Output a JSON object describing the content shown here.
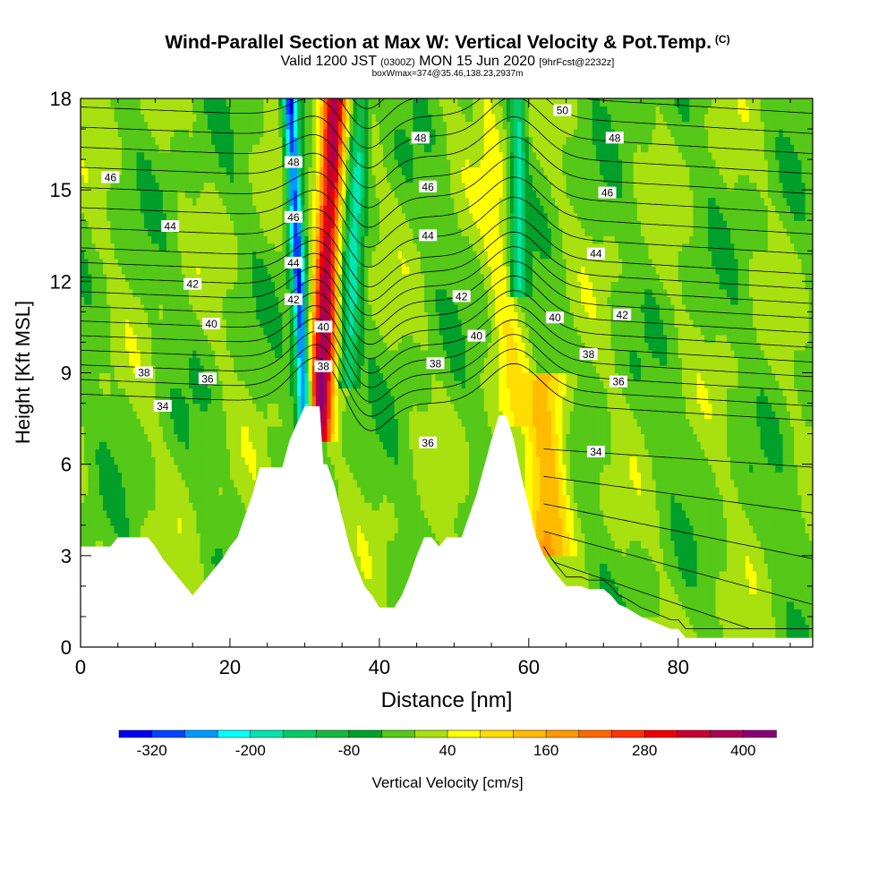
{
  "header": {
    "title": "Wind-Parallel Section at Max W: Vertical Velocity & Pot.Temp.",
    "copyright": "(C)",
    "valid_prefix": "Valid 1200 JST",
    "utc": "(0300Z)",
    "date": "MON 15 Jun 2020",
    "forecast": "[9hrFcst@2232z]",
    "box": "boxWmax=374@35.46,138.23,2937m"
  },
  "chart_data": {
    "type": "heatmap",
    "xlabel": "Distance [nm]",
    "ylabel": "Height [Kft MSL]",
    "xlim": [
      0,
      98
    ],
    "ylim": [
      0,
      18
    ],
    "x_ticks": [
      "0",
      "20",
      "40",
      "60",
      "80"
    ],
    "y_ticks": [
      "0",
      "3",
      "6",
      "9",
      "12",
      "15",
      "18"
    ],
    "colorbar": {
      "label": "Vertical Velocity [cm/s]",
      "tick_labels": [
        "-320",
        "-200",
        "-80",
        "40",
        "160",
        "280",
        "400"
      ],
      "tick_values": [
        -320,
        -200,
        -80,
        40,
        160,
        280,
        400
      ],
      "min": -360,
      "max": 440,
      "step": 40,
      "colors": [
        "#0000ee",
        "#0044ff",
        "#0099ff",
        "#00ffff",
        "#00e6b0",
        "#00cc66",
        "#14b83c",
        "#00a02a",
        "#55c818",
        "#a8e010",
        "#ffff00",
        "#ffdd00",
        "#ffbb00",
        "#ff9900",
        "#ff6600",
        "#ff3300",
        "#ee0000",
        "#c80030",
        "#aa0055",
        "#880077"
      ]
    },
    "terrain_kft": [
      [
        0,
        3.3
      ],
      [
        4,
        3.3
      ],
      [
        5,
        3.6
      ],
      [
        9,
        3.6
      ],
      [
        10,
        3.3
      ],
      [
        11,
        2.9
      ],
      [
        12,
        2.6
      ],
      [
        13,
        2.3
      ],
      [
        14,
        2.0
      ],
      [
        15,
        1.7
      ],
      [
        16,
        2.0
      ],
      [
        17,
        2.3
      ],
      [
        18,
        2.6
      ],
      [
        19,
        2.9
      ],
      [
        20,
        3.3
      ],
      [
        21,
        3.6
      ],
      [
        22,
        4.3
      ],
      [
        23,
        5.0
      ],
      [
        24,
        5.9
      ],
      [
        27,
        5.9
      ],
      [
        28,
        6.8
      ],
      [
        30,
        7.9
      ],
      [
        32,
        7.9
      ],
      [
        32.5,
        6.0
      ],
      [
        33,
        6.0
      ],
      [
        34,
        5.3
      ],
      [
        35,
        4.3
      ],
      [
        36,
        3.3
      ],
      [
        37,
        2.6
      ],
      [
        38,
        2.0
      ],
      [
        39,
        1.7
      ],
      [
        40,
        1.3
      ],
      [
        41,
        1.3
      ],
      [
        42,
        1.3
      ],
      [
        43,
        1.7
      ],
      [
        44,
        2.3
      ],
      [
        45,
        3.0
      ],
      [
        46,
        3.6
      ],
      [
        47,
        3.6
      ],
      [
        48,
        3.3
      ],
      [
        49,
        3.6
      ],
      [
        50,
        3.6
      ],
      [
        51,
        3.6
      ],
      [
        52,
        4.3
      ],
      [
        53,
        5.0
      ],
      [
        54,
        5.9
      ],
      [
        55,
        6.8
      ],
      [
        56,
        7.6
      ],
      [
        57,
        7.6
      ],
      [
        58,
        6.8
      ],
      [
        59,
        5.6
      ],
      [
        60,
        4.6
      ],
      [
        61,
        3.6
      ],
      [
        62,
        3.0
      ],
      [
        63,
        2.6
      ],
      [
        64,
        2.3
      ],
      [
        65,
        2.0
      ],
      [
        66,
        2.0
      ],
      [
        67,
        2.0
      ],
      [
        68,
        1.9
      ],
      [
        70,
        1.9
      ],
      [
        71,
        1.7
      ],
      [
        72,
        1.4
      ],
      [
        73,
        1.3
      ],
      [
        75,
        1.0
      ],
      [
        79,
        0.6
      ],
      [
        80,
        0.6
      ],
      [
        81,
        0.3
      ],
      [
        90,
        0.3
      ],
      [
        98,
        0.3
      ]
    ],
    "theta_contours": [
      {
        "label": "34",
        "x": 11,
        "y": 7.9
      },
      {
        "label": "38",
        "x": 8.5,
        "y": 9.0
      },
      {
        "label": "36",
        "x": 17,
        "y": 8.8
      },
      {
        "label": "40",
        "x": 17.5,
        "y": 10.6
      },
      {
        "label": "42",
        "x": 15,
        "y": 11.9
      },
      {
        "label": "44",
        "x": 12,
        "y": 13.8
      },
      {
        "label": "46",
        "x": 4,
        "y": 15.4
      },
      {
        "label": "48",
        "x": 28.5,
        "y": 15.9
      },
      {
        "label": "46",
        "x": 28.5,
        "y": 14.1
      },
      {
        "label": "44",
        "x": 28.5,
        "y": 12.6
      },
      {
        "label": "42",
        "x": 28.5,
        "y": 11.4
      },
      {
        "label": "40",
        "x": 32.5,
        "y": 10.5
      },
      {
        "label": "38",
        "x": 32.5,
        "y": 9.2
      },
      {
        "label": "36",
        "x": 46.5,
        "y": 6.7
      },
      {
        "label": "38",
        "x": 47.5,
        "y": 9.3
      },
      {
        "label": "40",
        "x": 53,
        "y": 10.2
      },
      {
        "label": "42",
        "x": 51,
        "y": 11.5
      },
      {
        "label": "44",
        "x": 46.5,
        "y": 13.5
      },
      {
        "label": "46",
        "x": 46.5,
        "y": 15.1
      },
      {
        "label": "48",
        "x": 45.5,
        "y": 16.7
      },
      {
        "label": "50",
        "x": 64.5,
        "y": 17.6
      },
      {
        "label": "48",
        "x": 71.5,
        "y": 16.7
      },
      {
        "label": "46",
        "x": 70.5,
        "y": 14.9
      },
      {
        "label": "44",
        "x": 69,
        "y": 12.9
      },
      {
        "label": "42",
        "x": 72.5,
        "y": 10.9
      },
      {
        "label": "40",
        "x": 63.5,
        "y": 10.8
      },
      {
        "label": "38",
        "x": 68,
        "y": 9.6
      },
      {
        "label": "36",
        "x": 72,
        "y": 8.7
      },
      {
        "label": "34",
        "x": 69,
        "y": 6.4
      }
    ],
    "updrafts": [
      {
        "x0": 32.0,
        "y0": 7.3,
        "x1": 34.0,
        "y1": 18,
        "w_half": 1.6,
        "peak": 380
      },
      {
        "x0": 58.0,
        "y0": 7.8,
        "x1": 54.5,
        "y1": 18,
        "w_half": 1.8,
        "peak": 60
      },
      {
        "x0": 62.5,
        "y0": 3.5,
        "x1": 62.5,
        "y1": 9.0,
        "w_half": 2.8,
        "peak": 150
      }
    ],
    "downdrafts": [
      {
        "x0": 30.2,
        "y0": 7.0,
        "x1": 28.0,
        "y1": 18,
        "w_half": 1.0,
        "peak": -320
      },
      {
        "x0": 35.8,
        "y0": 9.0,
        "x1": 37.5,
        "y1": 18,
        "w_half": 1.2,
        "peak": -160
      },
      {
        "x0": 58.6,
        "y0": 12.0,
        "x1": 58.6,
        "y1": 18,
        "w_half": 1.0,
        "peak": -150
      }
    ]
  }
}
